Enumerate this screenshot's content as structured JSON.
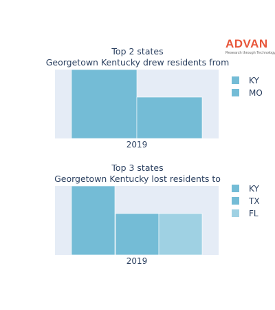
{
  "brand": {
    "name": "ADVAN",
    "tagline": "Research through Technology",
    "color": "#e8563a"
  },
  "chart_data": [
    {
      "type": "bar",
      "title": "Top 2 states",
      "subtitle": "Georgetown Kentucky drew residents from",
      "categories": [
        "2019"
      ],
      "series": [
        {
          "name": "KY",
          "values": [
            1.0
          ],
          "color": "#74bcd6"
        },
        {
          "name": "MO",
          "values": [
            0.6
          ],
          "color": "#74bcd6"
        }
      ],
      "legend_position": "right",
      "grid": false,
      "ylim": [
        0,
        1.0
      ],
      "background": "#e5ecf6"
    },
    {
      "type": "bar",
      "title": "Top 3 states",
      "subtitle": "Georgetown Kentucky lost residents to",
      "categories": [
        "2019"
      ],
      "series": [
        {
          "name": "KY",
          "values": [
            1.0
          ],
          "color": "#74bcd6"
        },
        {
          "name": "TX",
          "values": [
            0.6
          ],
          "color": "#74bcd6"
        },
        {
          "name": "FL",
          "values": [
            0.6
          ],
          "color": "#9fd1e3"
        }
      ],
      "legend_position": "right",
      "grid": false,
      "ylim": [
        0,
        1.0
      ],
      "background": "#e5ecf6"
    }
  ]
}
